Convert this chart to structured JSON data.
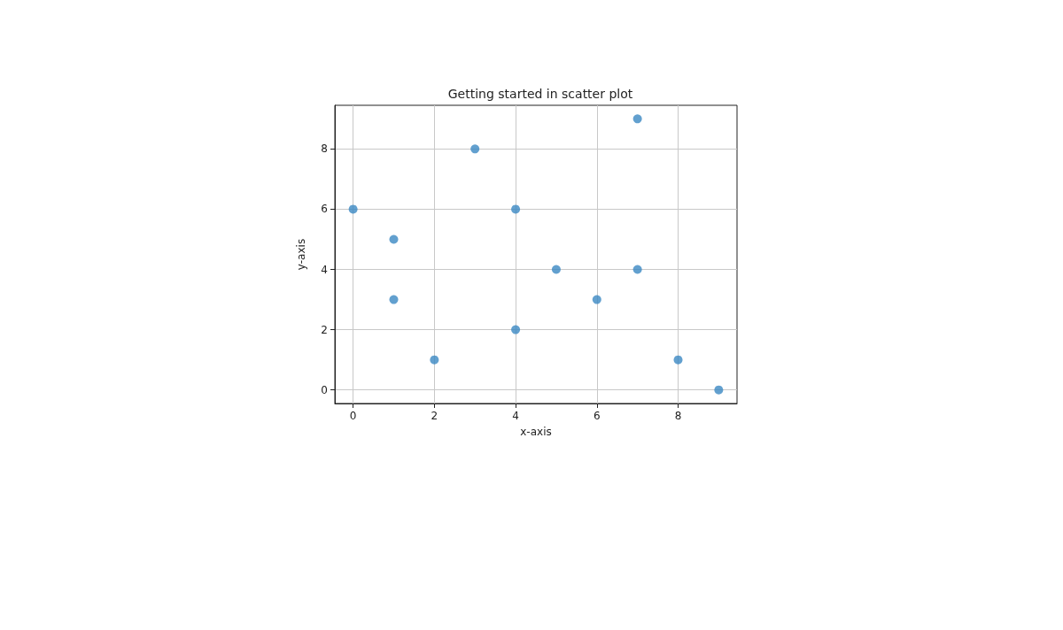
{
  "chart_data": {
    "type": "scatter",
    "title": "Getting started in scatter plot",
    "xlabel": "x-axis",
    "ylabel": "y-axis",
    "x": [
      0,
      1,
      1,
      2,
      3,
      4,
      4,
      5,
      6,
      7,
      7,
      8,
      9
    ],
    "values": [
      6,
      5,
      3,
      1,
      8,
      6,
      2,
      4,
      3,
      9,
      4,
      1,
      0
    ],
    "color": "#3b88c3",
    "marker": "circle",
    "grid": true,
    "xlim": [
      -0.45,
      9.45
    ],
    "xticks": [
      0,
      2,
      4,
      6,
      8
    ],
    "ylim": [
      -0.45,
      9.45
    ],
    "yticks": [
      0,
      2,
      4,
      6,
      8
    ]
  }
}
